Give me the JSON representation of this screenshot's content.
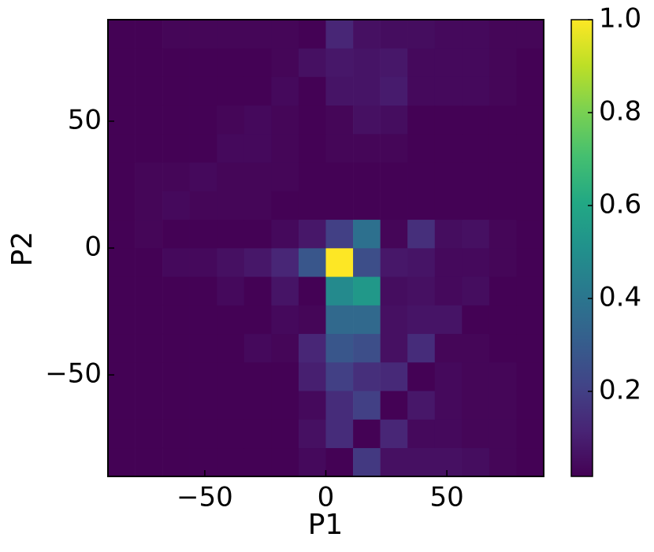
{
  "chart_data": {
    "type": "heatmap",
    "x_label": "P1",
    "y_label": "P2",
    "colormap": "viridis",
    "xlim": [
      -90,
      90
    ],
    "ylim": [
      -90,
      90
    ],
    "xticks": [
      {
        "value": -50,
        "label": "−50"
      },
      0,
      50
    ],
    "yticks": [
      {
        "value": -50,
        "label": "−50"
      },
      0,
      50
    ],
    "clim": [
      0.017,
      1
    ],
    "cticks": [
      0.2,
      0.4,
      0.6,
      0.8,
      {
        "value": 1,
        "label": "1.0"
      }
    ],
    "x_bins": [
      -90,
      -78.75,
      -67.5,
      -56.25,
      -45,
      -33.75,
      -22.5,
      -11.25,
      0,
      11.25,
      22.5,
      33.75,
      45,
      56.25,
      67.5,
      78.75,
      90
    ],
    "y_bins": [
      -90,
      -78.75,
      -67.5,
      -56.25,
      -45,
      -33.75,
      -22.5,
      -11.25,
      0,
      11.25,
      22.5,
      33.75,
      45,
      56.25,
      67.5,
      78.75,
      90
    ],
    "z": [
      [
        0.02,
        0.02,
        0.02,
        0.02,
        0.02,
        0.02,
        0.02,
        0.04,
        0.02,
        0.18,
        0.06,
        0.06,
        0.06,
        0.05,
        0.03,
        0.02
      ],
      [
        0.02,
        0.02,
        0.02,
        0.02,
        0.02,
        0.02,
        0.02,
        0.06,
        0.14,
        0.02,
        0.12,
        0.04,
        0.04,
        0.03,
        0.03,
        0.02
      ],
      [
        0.02,
        0.02,
        0.02,
        0.02,
        0.02,
        0.02,
        0.02,
        0.04,
        0.14,
        0.2,
        0.02,
        0.08,
        0.04,
        0.03,
        0.03,
        0.02
      ],
      [
        0.02,
        0.02,
        0.02,
        0.02,
        0.02,
        0.02,
        0.02,
        0.1,
        0.2,
        0.15,
        0.13,
        0.02,
        0.04,
        0.03,
        0.03,
        0.02
      ],
      [
        0.02,
        0.02,
        0.02,
        0.02,
        0.02,
        0.04,
        0.03,
        0.12,
        0.28,
        0.25,
        0.06,
        0.14,
        0.03,
        0.03,
        0.02,
        0.02
      ],
      [
        0.02,
        0.02,
        0.02,
        0.02,
        0.02,
        0.02,
        0.04,
        0.03,
        0.35,
        0.35,
        0.06,
        0.07,
        0.07,
        0.02,
        0.02,
        0.02
      ],
      [
        0.02,
        0.02,
        0.02,
        0.02,
        0.04,
        0.02,
        0.07,
        0.02,
        0.48,
        0.54,
        0.05,
        0.06,
        0.04,
        0.05,
        0.02,
        0.02
      ],
      [
        0.02,
        0.02,
        0.04,
        0.04,
        0.06,
        0.08,
        0.12,
        0.28,
        1.0,
        0.25,
        0.08,
        0.07,
        0.04,
        0.04,
        0.03,
        0.02
      ],
      [
        0.02,
        0.03,
        0.02,
        0.02,
        0.02,
        0.02,
        0.04,
        0.08,
        0.2,
        0.38,
        0.03,
        0.15,
        0.05,
        0.06,
        0.03,
        0.02
      ],
      [
        0.02,
        0.03,
        0.04,
        0.03,
        0.03,
        0.03,
        0.02,
        0.02,
        0.02,
        0.02,
        0.02,
        0.02,
        0.02,
        0.02,
        0.02,
        0.02
      ],
      [
        0.02,
        0.03,
        0.03,
        0.04,
        0.03,
        0.03,
        0.03,
        0.02,
        0.02,
        0.02,
        0.02,
        0.02,
        0.02,
        0.02,
        0.02,
        0.02
      ],
      [
        0.02,
        0.02,
        0.02,
        0.02,
        0.04,
        0.04,
        0.03,
        0.02,
        0.03,
        0.03,
        0.03,
        0.02,
        0.02,
        0.02,
        0.02,
        0.02
      ],
      [
        0.02,
        0.02,
        0.02,
        0.02,
        0.03,
        0.04,
        0.03,
        0.02,
        0.03,
        0.06,
        0.05,
        0.02,
        0.02,
        0.02,
        0.02,
        0.02
      ],
      [
        0.02,
        0.02,
        0.02,
        0.02,
        0.02,
        0.02,
        0.04,
        0.02,
        0.07,
        0.07,
        0.09,
        0.04,
        0.04,
        0.04,
        0.03,
        0.02
      ],
      [
        0.02,
        0.02,
        0.02,
        0.02,
        0.02,
        0.02,
        0.03,
        0.06,
        0.08,
        0.07,
        0.08,
        0.04,
        0.04,
        0.04,
        0.03,
        0.02
      ],
      [
        0.02,
        0.02,
        0.03,
        0.03,
        0.03,
        0.03,
        0.03,
        0.02,
        0.12,
        0.06,
        0.05,
        0.05,
        0.04,
        0.04,
        0.03,
        0.03
      ]
    ]
  }
}
